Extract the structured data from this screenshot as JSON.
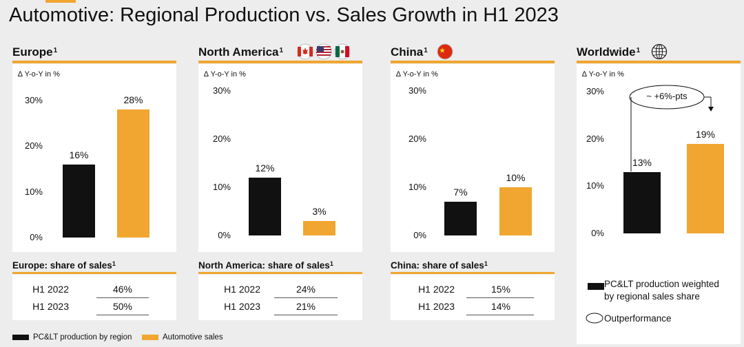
{
  "title": "Automotive: Regional Production vs. Sales Growth in H1 2023",
  "colors": {
    "accent": "#f0a630",
    "production": "#111111",
    "sales": "#f0a630"
  },
  "chart_data": [
    {
      "type": "bar",
      "panel": "Europe",
      "title": "Europe",
      "footnote": "1",
      "unit_label": "∆ Y-o-Y in %",
      "y_ticks": [
        "0%",
        "10%",
        "20%",
        "30%"
      ],
      "ylim": [
        0,
        30
      ],
      "series": [
        {
          "name": "PC&LT production by region",
          "values": [
            16
          ]
        },
        {
          "name": "Automotive sales",
          "values": [
            28
          ]
        }
      ],
      "data_labels": [
        "16%",
        "28%"
      ]
    },
    {
      "type": "bar",
      "panel": "North America",
      "title": "North America",
      "footnote": "1",
      "unit_label": "∆ Y-o-Y in %",
      "y_ticks": [
        "0%",
        "10%",
        "20%",
        "30%"
      ],
      "ylim": [
        0,
        30
      ],
      "series": [
        {
          "name": "PC&LT production by region",
          "values": [
            12
          ]
        },
        {
          "name": "Automotive sales",
          "values": [
            3
          ]
        }
      ],
      "data_labels": [
        "12%",
        "3%"
      ]
    },
    {
      "type": "bar",
      "panel": "China",
      "title": "China",
      "footnote": "1",
      "unit_label": "∆ Y-o-Y in %",
      "y_ticks": [
        "0%",
        "10%",
        "20%",
        "30%"
      ],
      "ylim": [
        0,
        30
      ],
      "series": [
        {
          "name": "PC&LT production by region",
          "values": [
            7
          ]
        },
        {
          "name": "Automotive sales",
          "values": [
            10
          ]
        }
      ],
      "data_labels": [
        "7%",
        "10%"
      ]
    },
    {
      "type": "bar",
      "panel": "Worldwide",
      "title": "Worldwide",
      "footnote": "1",
      "unit_label": "∆ Y-o-Y in %",
      "y_ticks": [
        "0%",
        "10%",
        "20%",
        "30%"
      ],
      "ylim": [
        0,
        30
      ],
      "series": [
        {
          "name": "PC&LT production weighted by regional sales share",
          "values": [
            13
          ]
        },
        {
          "name": "Automotive sales",
          "values": [
            19
          ]
        }
      ],
      "data_labels": [
        "13%",
        "19%"
      ],
      "annotation": "~ +6%-pts"
    }
  ],
  "share_tables": [
    {
      "title": "Europe: share of sales",
      "footnote": "1",
      "rows": [
        {
          "year": "H1 2022",
          "value": "46%"
        },
        {
          "year": "H1 2023",
          "value": "50%"
        }
      ]
    },
    {
      "title": "North America: share of sales",
      "footnote": "1",
      "rows": [
        {
          "year": "H1 2022",
          "value": "24%"
        },
        {
          "year": "H1 2023",
          "value": "21%"
        }
      ]
    },
    {
      "title": "China: share of sales",
      "footnote": "1",
      "rows": [
        {
          "year": "H1 2022",
          "value": "15%"
        },
        {
          "year": "H1 2023",
          "value": "14%"
        }
      ]
    }
  ],
  "legend": {
    "production": "PC&LT production by region",
    "sales": "Automotive sales",
    "worldwide_production_line1": "PC&LT production weighted",
    "worldwide_production_line2": "by regional sales share",
    "outperformance": "Outperformance"
  },
  "icons": {
    "north_america": [
      "canada-flag-icon",
      "usa-flag-icon",
      "mexico-flag-icon"
    ],
    "china": "china-flag-icon",
    "worldwide": "globe-icon"
  }
}
